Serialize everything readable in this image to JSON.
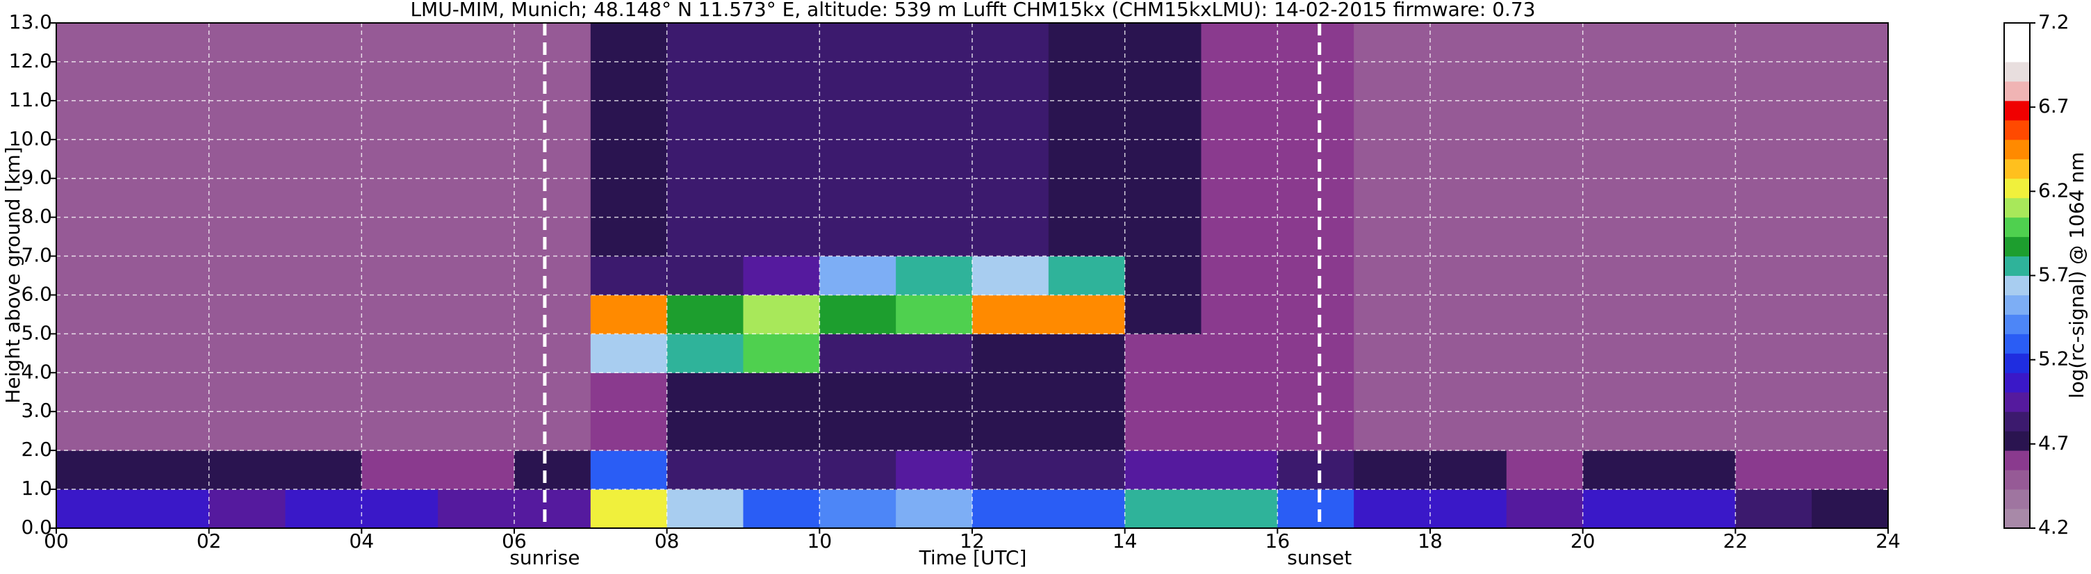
{
  "chart_data": {
    "type": "heatmap",
    "title": "LMU-MIM, Munich; 48.148° N 11.573° E, altitude: 539 m    Lufft CHM15kx (CHM15kxLMU): 14-02-2015    firmware: 0.73",
    "x_label": "Time [UTC]",
    "y_label": "Height above ground [km]",
    "xlim": [
      0,
      24
    ],
    "ylim": [
      0,
      13
    ],
    "xticks": [
      {
        "value": 0,
        "label": "00"
      },
      {
        "value": 2,
        "label": "02"
      },
      {
        "value": 4,
        "label": "04"
      },
      {
        "value": 6,
        "label": "06"
      },
      {
        "value": 8,
        "label": "08"
      },
      {
        "value": 10,
        "label": "10"
      },
      {
        "value": 12,
        "label": "12"
      },
      {
        "value": 14,
        "label": "14"
      },
      {
        "value": 16,
        "label": "16"
      },
      {
        "value": 18,
        "label": "18"
      },
      {
        "value": 20,
        "label": "20"
      },
      {
        "value": 22,
        "label": "22"
      },
      {
        "value": 24,
        "label": "24"
      }
    ],
    "yticks": [
      {
        "value": 0,
        "label": "0.0"
      },
      {
        "value": 1,
        "label": "1.0"
      },
      {
        "value": 2,
        "label": "2.0"
      },
      {
        "value": 3,
        "label": "3.0"
      },
      {
        "value": 4,
        "label": "4.0"
      },
      {
        "value": 5,
        "label": "5.0"
      },
      {
        "value": 6,
        "label": "6.0"
      },
      {
        "value": 7,
        "label": "7.0"
      },
      {
        "value": 8,
        "label": "8.0"
      },
      {
        "value": 9,
        "label": "9.0"
      },
      {
        "value": 10,
        "label": "10.0"
      },
      {
        "value": 11,
        "label": "11.0"
      },
      {
        "value": 12,
        "label": "12.0"
      },
      {
        "value": 13,
        "label": "13.0"
      }
    ],
    "grid": true,
    "annotations": [
      {
        "text": "sunrise",
        "x": 6.4
      },
      {
        "text": "sunset",
        "x": 16.55
      }
    ],
    "x": [
      0,
      1,
      2,
      3,
      4,
      5,
      6,
      7,
      8,
      9,
      10,
      11,
      12,
      13,
      14,
      15,
      16,
      17,
      18,
      19,
      20,
      21,
      22,
      23
    ],
    "y": [
      0,
      1,
      2,
      3,
      4,
      5,
      6,
      7,
      8,
      9,
      10,
      11,
      12
    ],
    "z": [
      [
        5.1,
        5.1,
        5.0,
        5.1,
        5.1,
        4.9,
        5.0,
        6.2,
        5.6,
        5.3,
        5.4,
        5.5,
        5.3,
        5.3,
        5.8,
        5.7,
        5.3,
        5.1,
        5.1,
        5.0,
        5.1,
        5.1,
        4.8,
        4.7
      ],
      [
        4.7,
        4.7,
        4.7,
        4.7,
        4.6,
        4.6,
        4.7,
        5.3,
        4.8,
        4.8,
        4.8,
        4.9,
        4.8,
        4.8,
        5.0,
        5.0,
        4.8,
        4.7,
        4.7,
        4.6,
        4.7,
        4.7,
        4.6,
        4.6
      ],
      [
        4.5,
        4.5,
        4.5,
        4.5,
        4.5,
        4.5,
        4.5,
        4.6,
        4.7,
        4.7,
        4.7,
        4.7,
        4.7,
        4.7,
        4.6,
        4.6,
        4.6,
        4.5,
        4.5,
        4.5,
        4.5,
        4.5,
        4.5,
        4.5
      ],
      [
        4.5,
        4.5,
        4.5,
        4.5,
        4.5,
        4.5,
        4.5,
        4.6,
        4.7,
        4.7,
        4.7,
        4.7,
        4.7,
        4.7,
        4.6,
        4.6,
        4.6,
        4.5,
        4.5,
        4.5,
        4.5,
        4.5,
        4.5,
        4.5
      ],
      [
        4.5,
        4.5,
        4.5,
        4.5,
        4.5,
        4.5,
        4.5,
        5.6,
        5.8,
        6.0,
        4.8,
        4.8,
        4.7,
        4.7,
        4.6,
        4.6,
        4.6,
        4.5,
        4.5,
        4.5,
        4.5,
        4.5,
        4.5,
        4.5
      ],
      [
        4.5,
        4.5,
        4.5,
        4.5,
        4.5,
        4.5,
        4.5,
        6.4,
        5.9,
        6.1,
        5.9,
        6.0,
        6.4,
        6.4,
        4.7,
        4.6,
        4.6,
        4.5,
        4.5,
        4.5,
        4.5,
        4.5,
        4.5,
        4.5
      ],
      [
        4.5,
        4.5,
        4.5,
        4.5,
        4.5,
        4.5,
        4.5,
        4.8,
        4.8,
        4.9,
        5.5,
        5.8,
        5.6,
        5.7,
        4.7,
        4.6,
        4.6,
        4.5,
        4.5,
        4.5,
        4.5,
        4.5,
        4.5,
        4.5
      ],
      [
        4.5,
        4.5,
        4.5,
        4.5,
        4.5,
        4.5,
        4.5,
        4.7,
        4.8,
        4.8,
        4.8,
        4.8,
        4.8,
        4.7,
        4.7,
        4.6,
        4.6,
        4.5,
        4.5,
        4.5,
        4.5,
        4.5,
        4.5,
        4.5
      ],
      [
        4.5,
        4.5,
        4.5,
        4.5,
        4.5,
        4.5,
        4.5,
        4.7,
        4.8,
        4.8,
        4.8,
        4.8,
        4.8,
        4.7,
        4.7,
        4.6,
        4.6,
        4.5,
        4.5,
        4.5,
        4.5,
        4.5,
        4.5,
        4.5
      ],
      [
        4.5,
        4.5,
        4.5,
        4.5,
        4.5,
        4.5,
        4.5,
        4.7,
        4.8,
        4.8,
        4.8,
        4.8,
        4.8,
        4.7,
        4.7,
        4.6,
        4.6,
        4.5,
        4.5,
        4.5,
        4.5,
        4.5,
        4.5,
        4.5
      ],
      [
        4.5,
        4.5,
        4.5,
        4.5,
        4.5,
        4.5,
        4.5,
        4.7,
        4.8,
        4.8,
        4.8,
        4.8,
        4.8,
        4.7,
        4.7,
        4.6,
        4.6,
        4.5,
        4.5,
        4.5,
        4.5,
        4.5,
        4.5,
        4.5
      ],
      [
        4.5,
        4.5,
        4.5,
        4.5,
        4.5,
        4.5,
        4.5,
        4.7,
        4.8,
        4.8,
        4.8,
        4.8,
        4.8,
        4.7,
        4.7,
        4.6,
        4.6,
        4.5,
        4.5,
        4.5,
        4.5,
        4.5,
        4.5,
        4.5
      ],
      [
        4.5,
        4.5,
        4.5,
        4.5,
        4.5,
        4.5,
        4.5,
        4.7,
        4.8,
        4.8,
        4.8,
        4.8,
        4.8,
        4.7,
        4.7,
        4.6,
        4.6,
        4.5,
        4.5,
        4.5,
        4.5,
        4.5,
        4.5,
        4.5
      ]
    ],
    "colorbar": {
      "label": "log(rc-signal) @ 1064 nm",
      "lim": [
        4.2,
        7.2
      ],
      "ticks": [
        4.2,
        4.7,
        5.2,
        5.7,
        6.2,
        6.7,
        7.2
      ],
      "colors": [
        "#a889a8",
        "#9f75a0",
        "#965a96",
        "#8a3a8e",
        "#2a1450",
        "#3c1a6e",
        "#551a9e",
        "#3a18c8",
        "#1f2de0",
        "#2a5df5",
        "#4d86f7",
        "#7daef5",
        "#a8cdf0",
        "#2fb39a",
        "#1d9e2e",
        "#4fd04f",
        "#a8e85a",
        "#f0f03c",
        "#ffc01e",
        "#ff8a00",
        "#ff4a00",
        "#f00000",
        "#f0b4b4",
        "#e8dede",
        "#ffffff",
        "#ffffff"
      ]
    }
  }
}
